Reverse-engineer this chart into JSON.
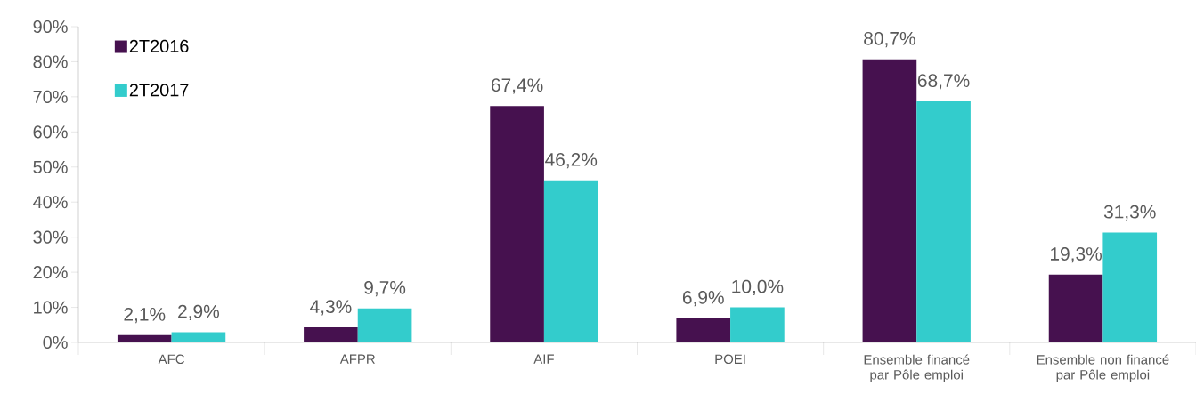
{
  "chart_data": {
    "type": "bar",
    "categories": [
      "AFC",
      "AFPR",
      "AIF",
      "POEI",
      "Ensemble financé par Pôle emploi",
      "Ensemble non financé par Pôle emploi"
    ],
    "series": [
      {
        "name": "2T2016",
        "color": "#46114f",
        "values": [
          2.1,
          4.3,
          67.4,
          6.9,
          80.7,
          19.3
        ],
        "value_labels": [
          "2,1%",
          "4,3%",
          "67,4%",
          "6,9%",
          "80,7%",
          "19,3%"
        ]
      },
      {
        "name": "2T2017",
        "color": "#33cccc",
        "values": [
          2.9,
          9.7,
          46.2,
          10.0,
          68.7,
          31.3
        ],
        "value_labels": [
          "2,9%",
          "9,7%",
          "46,2%",
          "10,0%",
          "68,7%",
          "31,3%"
        ]
      }
    ],
    "ylim": [
      0,
      90
    ],
    "yticks": [
      {
        "value": 0,
        "label": "0%"
      },
      {
        "value": 10,
        "label": "10%"
      },
      {
        "value": 20,
        "label": "20%"
      },
      {
        "value": 30,
        "label": "30%"
      },
      {
        "value": 40,
        "label": "40%"
      },
      {
        "value": 50,
        "label": "50%"
      },
      {
        "value": 60,
        "label": "60%"
      },
      {
        "value": 70,
        "label": "70%"
      },
      {
        "value": 80,
        "label": "80%"
      },
      {
        "value": 90,
        "label": "90%"
      }
    ],
    "grid": false,
    "legend": "top left"
  }
}
